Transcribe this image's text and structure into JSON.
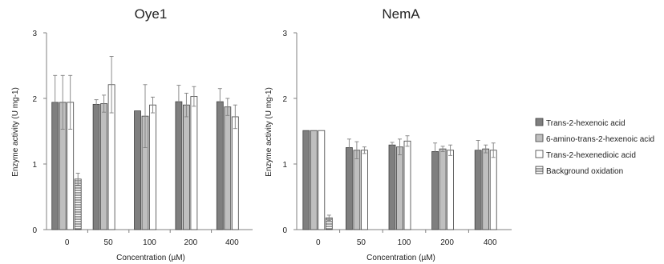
{
  "chart_data": [
    {
      "type": "bar",
      "title": "Oye1",
      "xlabel": "Concentration (µM)",
      "ylabel": "Enzyme activity (U mg-1)",
      "ylim": [
        0,
        3
      ],
      "yticks": [
        "0",
        "1",
        "2",
        "3"
      ],
      "categories": [
        "0",
        "50",
        "100",
        "200",
        "400"
      ],
      "series": [
        {
          "name": "Trans-2-hexenoic acid",
          "values": [
            1.94,
            1.91,
            1.81,
            1.95,
            1.95
          ],
          "errors": [
            0.41,
            0.07,
            0.0,
            0.25,
            0.2
          ]
        },
        {
          "name": "6-amino-trans-2-hexenoic acid",
          "values": [
            1.94,
            1.92,
            1.73,
            1.9,
            1.87
          ],
          "errors": [
            0.41,
            0.13,
            0.48,
            0.18,
            0.13
          ]
        },
        {
          "name": "Trans-2-hexenedioic acid",
          "values": [
            1.94,
            2.21,
            1.9,
            2.03,
            1.72
          ],
          "errors": [
            0.41,
            0.43,
            0.12,
            0.15,
            0.18
          ]
        },
        {
          "name": "Background oxidation",
          "values": [
            0.77,
            null,
            null,
            null,
            null
          ],
          "errors": [
            0.09,
            null,
            null,
            null,
            null
          ]
        }
      ]
    },
    {
      "type": "bar",
      "title": "NemA",
      "xlabel": "Concentration (µM)",
      "ylabel": "Enzyme activity (U mg-1)",
      "ylim": [
        0,
        3
      ],
      "yticks": [
        "0",
        "1",
        "2",
        "3"
      ],
      "categories": [
        "0",
        "50",
        "100",
        "200",
        "400"
      ],
      "series": [
        {
          "name": "Trans-2-hexenoic acid",
          "values": [
            1.51,
            1.25,
            1.29,
            1.19,
            1.21
          ],
          "errors": [
            0.0,
            0.13,
            0.04,
            0.13,
            0.15
          ]
        },
        {
          "name": "6-amino-trans-2-hexenoic acid",
          "values": [
            1.51,
            1.21,
            1.26,
            1.23,
            1.23
          ],
          "errors": [
            0.0,
            0.13,
            0.12,
            0.04,
            0.06
          ]
        },
        {
          "name": "Trans-2-hexenedioic acid",
          "values": [
            1.51,
            1.21,
            1.35,
            1.21,
            1.21
          ],
          "errors": [
            0.0,
            0.05,
            0.08,
            0.08,
            0.11
          ]
        },
        {
          "name": "Background oxidation",
          "values": [
            0.18,
            null,
            null,
            null,
            null
          ],
          "errors": [
            0.04,
            null,
            null,
            null,
            null
          ]
        }
      ]
    }
  ],
  "legend": {
    "placement": "right",
    "items": [
      {
        "label": "Trans-2-hexenoic acid",
        "fill": "dark-grey"
      },
      {
        "label": "6-amino-trans-2-hexenoic acid",
        "fill": "light-grey"
      },
      {
        "label": "Trans-2-hexenedioic acid",
        "fill": "white"
      },
      {
        "label": "Background oxidation",
        "fill": "horizontal-stripes"
      }
    ]
  },
  "colors": {
    "series_1": "#7f7f7f",
    "series_2": "#bfbfbf",
    "series_3": "#ffffff",
    "series_4_stripes": "#404040",
    "bar_outline": "#404040",
    "axis": "#808080",
    "error_bar": "#808080"
  }
}
